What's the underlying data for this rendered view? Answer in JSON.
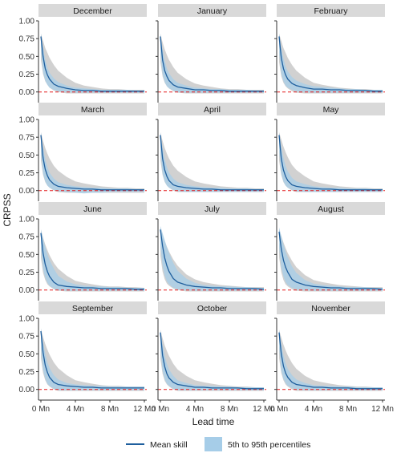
{
  "chart_data": {
    "type": "line",
    "xlabel": "Lead time",
    "ylabel": "CRPSS",
    "xlim": [
      0,
      12
    ],
    "ylim": [
      -0.15,
      1.0
    ],
    "x_ticks": [
      0,
      4,
      8,
      12
    ],
    "x_tick_labels": [
      "0 Mn",
      "4 Mn",
      "8 Mn",
      "12 Mn"
    ],
    "y_ticks": [
      0.0,
      0.25,
      0.5,
      0.75,
      1.0
    ],
    "y_tick_labels": [
      "0.00",
      "0.25",
      "0.50",
      "0.75",
      "1.00"
    ],
    "zero_reference": 0,
    "x": [
      0,
      0.25,
      0.5,
      0.75,
      1,
      1.5,
      2,
      3,
      4,
      5,
      6,
      7,
      8,
      9,
      10,
      11,
      12
    ],
    "colors": {
      "mean_line": "#1f5f9e",
      "percentile_band": "#a6cde8",
      "climatology_band": "#bdbdbd",
      "zero_line": "#e41a1c"
    },
    "legend": {
      "position": "bottom",
      "items": [
        {
          "label": "Mean skill",
          "type": "line",
          "color": "#1f5f9e"
        },
        {
          "label": "5th to 95th percentiles",
          "type": "area",
          "color": "#a6cde8"
        }
      ]
    },
    "panels": [
      {
        "title": "December",
        "mean": [
          0.78,
          0.5,
          0.33,
          0.24,
          0.18,
          0.11,
          0.08,
          0.05,
          0.03,
          0.02,
          0.02,
          0.01,
          0.01,
          0.01,
          0.01,
          0.01,
          0.01
        ],
        "p5": [
          0.6,
          0.28,
          0.16,
          0.1,
          0.06,
          0.03,
          0.01,
          0.0,
          -0.01,
          -0.01,
          -0.01,
          -0.01,
          -0.01,
          -0.01,
          -0.01,
          -0.01,
          -0.01
        ],
        "p95": [
          0.82,
          0.62,
          0.45,
          0.34,
          0.27,
          0.19,
          0.14,
          0.09,
          0.06,
          0.05,
          0.04,
          0.03,
          0.03,
          0.03,
          0.03,
          0.02,
          0.02
        ],
        "grey_low": [
          0.45,
          0.25,
          0.15,
          0.1,
          0.06,
          0.02,
          0.0,
          -0.02,
          -0.02,
          -0.02,
          -0.02,
          -0.02,
          -0.02,
          -0.02,
          -0.02,
          -0.02,
          -0.02
        ],
        "grey_high": [
          0.82,
          0.72,
          0.62,
          0.55,
          0.48,
          0.38,
          0.3,
          0.2,
          0.13,
          0.09,
          0.07,
          0.05,
          0.04,
          0.04,
          0.03,
          0.03,
          0.03
        ]
      },
      {
        "title": "January",
        "mean": [
          0.78,
          0.45,
          0.3,
          0.22,
          0.16,
          0.1,
          0.07,
          0.05,
          0.03,
          0.03,
          0.02,
          0.02,
          0.01,
          0.01,
          0.01,
          0.01,
          0.01
        ],
        "p5": [
          0.55,
          0.25,
          0.14,
          0.08,
          0.05,
          0.02,
          0.0,
          -0.01,
          -0.01,
          -0.01,
          -0.01,
          -0.01,
          -0.01,
          -0.01,
          -0.01,
          -0.01,
          -0.01
        ],
        "p95": [
          0.82,
          0.6,
          0.44,
          0.33,
          0.26,
          0.18,
          0.13,
          0.09,
          0.06,
          0.05,
          0.04,
          0.04,
          0.03,
          0.03,
          0.03,
          0.02,
          0.02
        ],
        "grey_low": [
          0.42,
          0.22,
          0.13,
          0.08,
          0.05,
          0.01,
          -0.01,
          -0.02,
          -0.02,
          -0.02,
          -0.02,
          -0.02,
          -0.02,
          -0.02,
          -0.02,
          -0.02,
          -0.02
        ],
        "grey_high": [
          0.82,
          0.7,
          0.6,
          0.52,
          0.45,
          0.35,
          0.27,
          0.18,
          0.12,
          0.09,
          0.07,
          0.05,
          0.04,
          0.04,
          0.03,
          0.03,
          0.03
        ]
      },
      {
        "title": "February",
        "mean": [
          0.78,
          0.48,
          0.33,
          0.24,
          0.18,
          0.12,
          0.09,
          0.06,
          0.04,
          0.04,
          0.03,
          0.03,
          0.02,
          0.02,
          0.02,
          0.01,
          0.01
        ],
        "p5": [
          0.55,
          0.26,
          0.15,
          0.09,
          0.06,
          0.03,
          0.01,
          0.0,
          -0.01,
          -0.01,
          -0.01,
          -0.01,
          -0.01,
          -0.01,
          -0.01,
          -0.01,
          -0.01
        ],
        "p95": [
          0.82,
          0.62,
          0.47,
          0.36,
          0.29,
          0.21,
          0.16,
          0.11,
          0.08,
          0.07,
          0.06,
          0.05,
          0.04,
          0.04,
          0.03,
          0.03,
          0.03
        ],
        "grey_low": [
          0.42,
          0.22,
          0.13,
          0.08,
          0.05,
          0.01,
          -0.01,
          -0.02,
          -0.02,
          -0.02,
          -0.02,
          -0.02,
          -0.02,
          -0.02,
          -0.02,
          -0.02,
          -0.02
        ],
        "grey_high": [
          0.82,
          0.72,
          0.62,
          0.55,
          0.48,
          0.38,
          0.3,
          0.2,
          0.13,
          0.1,
          0.08,
          0.06,
          0.05,
          0.04,
          0.04,
          0.03,
          0.03
        ]
      },
      {
        "title": "March",
        "mean": [
          0.78,
          0.46,
          0.3,
          0.21,
          0.15,
          0.09,
          0.06,
          0.04,
          0.03,
          0.02,
          0.02,
          0.01,
          0.01,
          0.01,
          0.01,
          0.01,
          0.01
        ],
        "p5": [
          0.55,
          0.24,
          0.13,
          0.07,
          0.04,
          0.01,
          -0.01,
          -0.02,
          -0.03,
          -0.04,
          -0.03,
          -0.03,
          -0.02,
          -0.02,
          -0.02,
          -0.02,
          -0.02
        ],
        "p95": [
          0.82,
          0.6,
          0.44,
          0.33,
          0.25,
          0.17,
          0.12,
          0.08,
          0.06,
          0.05,
          0.04,
          0.04,
          0.03,
          0.03,
          0.03,
          0.02,
          0.02
        ],
        "grey_low": [
          0.42,
          0.22,
          0.12,
          0.07,
          0.04,
          0.0,
          -0.02,
          -0.03,
          -0.03,
          -0.03,
          -0.03,
          -0.03,
          -0.03,
          -0.03,
          -0.03,
          -0.03,
          -0.03
        ],
        "grey_high": [
          0.82,
          0.7,
          0.6,
          0.52,
          0.45,
          0.35,
          0.28,
          0.19,
          0.13,
          0.1,
          0.08,
          0.06,
          0.05,
          0.04,
          0.04,
          0.03,
          0.03
        ]
      },
      {
        "title": "April",
        "mean": [
          0.78,
          0.45,
          0.29,
          0.2,
          0.14,
          0.08,
          0.06,
          0.04,
          0.03,
          0.02,
          0.02,
          0.01,
          0.01,
          0.01,
          0.01,
          0.01,
          0.01
        ],
        "p5": [
          0.55,
          0.24,
          0.13,
          0.07,
          0.04,
          0.01,
          -0.01,
          -0.02,
          -0.02,
          -0.02,
          -0.02,
          -0.02,
          -0.02,
          -0.02,
          -0.02,
          -0.02,
          -0.02
        ],
        "p95": [
          0.82,
          0.6,
          0.44,
          0.33,
          0.25,
          0.17,
          0.12,
          0.08,
          0.06,
          0.05,
          0.04,
          0.04,
          0.03,
          0.03,
          0.03,
          0.02,
          0.02
        ],
        "grey_low": [
          0.42,
          0.22,
          0.12,
          0.07,
          0.04,
          0.0,
          -0.02,
          -0.02,
          -0.02,
          -0.02,
          -0.02,
          -0.02,
          -0.02,
          -0.02,
          -0.02,
          -0.02,
          -0.02
        ],
        "grey_high": [
          0.82,
          0.7,
          0.6,
          0.52,
          0.45,
          0.35,
          0.28,
          0.19,
          0.13,
          0.1,
          0.08,
          0.06,
          0.05,
          0.04,
          0.04,
          0.03,
          0.03
        ]
      },
      {
        "title": "May",
        "mean": [
          0.78,
          0.45,
          0.29,
          0.2,
          0.14,
          0.08,
          0.06,
          0.04,
          0.03,
          0.02,
          0.02,
          0.01,
          0.01,
          0.01,
          0.01,
          0.01,
          0.01
        ],
        "p5": [
          0.55,
          0.24,
          0.13,
          0.07,
          0.04,
          0.01,
          -0.01,
          -0.02,
          -0.02,
          -0.02,
          -0.02,
          -0.02,
          -0.02,
          -0.02,
          -0.02,
          -0.02,
          -0.02
        ],
        "p95": [
          0.82,
          0.62,
          0.46,
          0.35,
          0.27,
          0.18,
          0.13,
          0.09,
          0.06,
          0.05,
          0.04,
          0.04,
          0.03,
          0.03,
          0.03,
          0.02,
          0.02
        ],
        "grey_low": [
          0.42,
          0.22,
          0.12,
          0.07,
          0.04,
          0.0,
          -0.02,
          -0.02,
          -0.02,
          -0.02,
          -0.02,
          -0.02,
          -0.02,
          -0.02,
          -0.02,
          -0.02,
          -0.02
        ],
        "grey_high": [
          0.82,
          0.72,
          0.62,
          0.54,
          0.47,
          0.36,
          0.29,
          0.2,
          0.13,
          0.1,
          0.08,
          0.06,
          0.05,
          0.04,
          0.04,
          0.03,
          0.03
        ]
      },
      {
        "title": "June",
        "mean": [
          0.8,
          0.52,
          0.36,
          0.26,
          0.19,
          0.11,
          0.07,
          0.05,
          0.04,
          0.03,
          0.03,
          0.02,
          0.02,
          0.02,
          0.02,
          0.01,
          0.01
        ],
        "p5": [
          0.6,
          0.3,
          0.17,
          0.1,
          0.06,
          0.02,
          0.0,
          -0.01,
          -0.01,
          -0.01,
          -0.01,
          -0.01,
          -0.01,
          -0.01,
          -0.01,
          -0.01,
          -0.01
        ],
        "p95": [
          0.85,
          0.72,
          0.6,
          0.5,
          0.42,
          0.3,
          0.2,
          0.12,
          0.08,
          0.06,
          0.05,
          0.05,
          0.04,
          0.04,
          0.03,
          0.03,
          0.03
        ],
        "grey_low": [
          0.45,
          0.24,
          0.14,
          0.08,
          0.05,
          0.01,
          -0.01,
          -0.02,
          -0.02,
          -0.02,
          -0.02,
          -0.02,
          -0.02,
          -0.02,
          -0.02,
          -0.02,
          -0.02
        ],
        "grey_high": [
          0.85,
          0.74,
          0.64,
          0.56,
          0.49,
          0.38,
          0.3,
          0.2,
          0.13,
          0.1,
          0.08,
          0.06,
          0.05,
          0.05,
          0.04,
          0.04,
          0.03
        ]
      },
      {
        "title": "July",
        "mean": [
          0.85,
          0.62,
          0.45,
          0.34,
          0.26,
          0.16,
          0.11,
          0.07,
          0.05,
          0.04,
          0.03,
          0.03,
          0.02,
          0.02,
          0.02,
          0.02,
          0.01
        ],
        "p5": [
          0.62,
          0.34,
          0.2,
          0.12,
          0.08,
          0.03,
          0.01,
          0.0,
          -0.01,
          -0.01,
          -0.01,
          -0.01,
          -0.01,
          -0.01,
          -0.01,
          -0.01,
          -0.01
        ],
        "p95": [
          0.9,
          0.8,
          0.7,
          0.6,
          0.52,
          0.38,
          0.27,
          0.16,
          0.1,
          0.07,
          0.06,
          0.05,
          0.05,
          0.04,
          0.04,
          0.03,
          0.03
        ],
        "grey_low": [
          0.48,
          0.26,
          0.15,
          0.09,
          0.06,
          0.02,
          0.0,
          -0.02,
          -0.02,
          -0.02,
          -0.02,
          -0.02,
          -0.02,
          -0.02,
          -0.02,
          -0.02,
          -0.02
        ],
        "grey_high": [
          0.88,
          0.78,
          0.69,
          0.61,
          0.54,
          0.43,
          0.34,
          0.22,
          0.15,
          0.11,
          0.09,
          0.07,
          0.06,
          0.05,
          0.04,
          0.04,
          0.04
        ]
      },
      {
        "title": "August",
        "mean": [
          0.82,
          0.58,
          0.42,
          0.32,
          0.25,
          0.15,
          0.11,
          0.07,
          0.05,
          0.04,
          0.03,
          0.03,
          0.02,
          0.02,
          0.02,
          0.02,
          0.01
        ],
        "p5": [
          0.6,
          0.32,
          0.19,
          0.11,
          0.07,
          0.03,
          0.01,
          0.0,
          -0.01,
          -0.01,
          -0.01,
          -0.01,
          -0.01,
          -0.01,
          -0.01,
          -0.01,
          -0.01
        ],
        "p95": [
          0.88,
          0.76,
          0.64,
          0.54,
          0.46,
          0.33,
          0.24,
          0.14,
          0.09,
          0.07,
          0.06,
          0.05,
          0.04,
          0.04,
          0.04,
          0.03,
          0.03
        ],
        "grey_low": [
          0.46,
          0.25,
          0.14,
          0.08,
          0.05,
          0.01,
          -0.01,
          -0.02,
          -0.02,
          -0.02,
          -0.02,
          -0.02,
          -0.02,
          -0.02,
          -0.02,
          -0.02,
          -0.02
        ],
        "grey_high": [
          0.86,
          0.76,
          0.67,
          0.59,
          0.52,
          0.41,
          0.32,
          0.21,
          0.14,
          0.11,
          0.09,
          0.07,
          0.06,
          0.05,
          0.04,
          0.04,
          0.04
        ]
      },
      {
        "title": "September",
        "mean": [
          0.82,
          0.52,
          0.34,
          0.24,
          0.17,
          0.1,
          0.07,
          0.05,
          0.04,
          0.03,
          0.03,
          0.02,
          0.02,
          0.02,
          0.02,
          0.02,
          0.02
        ],
        "p5": [
          0.58,
          0.28,
          0.15,
          0.08,
          0.05,
          0.01,
          -0.01,
          -0.01,
          -0.01,
          -0.01,
          -0.01,
          -0.01,
          -0.01,
          -0.01,
          -0.01,
          -0.01,
          -0.01
        ],
        "p95": [
          0.86,
          0.66,
          0.5,
          0.38,
          0.3,
          0.2,
          0.14,
          0.09,
          0.07,
          0.06,
          0.05,
          0.05,
          0.04,
          0.04,
          0.04,
          0.04,
          0.04
        ],
        "grey_low": [
          0.44,
          0.23,
          0.13,
          0.07,
          0.04,
          0.0,
          -0.02,
          -0.02,
          -0.02,
          -0.02,
          -0.02,
          -0.02,
          -0.02,
          -0.02,
          -0.02,
          -0.02,
          -0.02
        ],
        "grey_high": [
          0.85,
          0.74,
          0.64,
          0.56,
          0.49,
          0.38,
          0.3,
          0.2,
          0.13,
          0.1,
          0.08,
          0.06,
          0.05,
          0.05,
          0.04,
          0.04,
          0.04
        ]
      },
      {
        "title": "October",
        "mean": [
          0.8,
          0.48,
          0.32,
          0.22,
          0.16,
          0.1,
          0.07,
          0.05,
          0.03,
          0.03,
          0.02,
          0.02,
          0.02,
          0.02,
          0.01,
          0.01,
          0.01
        ],
        "p5": [
          0.56,
          0.26,
          0.14,
          0.08,
          0.05,
          0.01,
          -0.01,
          -0.01,
          -0.01,
          -0.01,
          -0.01,
          -0.01,
          -0.01,
          -0.01,
          -0.01,
          -0.01,
          -0.01
        ],
        "p95": [
          0.84,
          0.63,
          0.47,
          0.36,
          0.28,
          0.19,
          0.13,
          0.09,
          0.06,
          0.05,
          0.05,
          0.04,
          0.04,
          0.03,
          0.03,
          0.03,
          0.03
        ],
        "grey_low": [
          0.43,
          0.22,
          0.12,
          0.07,
          0.04,
          0.0,
          -0.02,
          -0.02,
          -0.02,
          -0.02,
          -0.02,
          -0.02,
          -0.02,
          -0.02,
          -0.02,
          -0.02,
          -0.02
        ],
        "grey_high": [
          0.84,
          0.72,
          0.62,
          0.54,
          0.47,
          0.36,
          0.28,
          0.19,
          0.13,
          0.1,
          0.08,
          0.06,
          0.05,
          0.04,
          0.04,
          0.03,
          0.03
        ]
      },
      {
        "title": "November",
        "mean": [
          0.8,
          0.5,
          0.33,
          0.23,
          0.17,
          0.1,
          0.07,
          0.05,
          0.03,
          0.03,
          0.02,
          0.02,
          0.02,
          0.01,
          0.01,
          0.01,
          0.01
        ],
        "p5": [
          0.58,
          0.27,
          0.15,
          0.09,
          0.05,
          0.02,
          0.0,
          -0.01,
          -0.01,
          -0.01,
          -0.01,
          -0.01,
          -0.01,
          -0.01,
          -0.01,
          -0.01,
          -0.01
        ],
        "p95": [
          0.84,
          0.64,
          0.48,
          0.37,
          0.29,
          0.2,
          0.14,
          0.09,
          0.06,
          0.05,
          0.05,
          0.04,
          0.04,
          0.03,
          0.03,
          0.03,
          0.03
        ],
        "grey_low": [
          0.44,
          0.23,
          0.13,
          0.07,
          0.04,
          0.0,
          -0.02,
          -0.02,
          -0.02,
          -0.02,
          -0.02,
          -0.02,
          -0.02,
          -0.02,
          -0.02,
          -0.02,
          -0.02
        ],
        "grey_high": [
          0.84,
          0.73,
          0.63,
          0.55,
          0.48,
          0.37,
          0.29,
          0.19,
          0.13,
          0.1,
          0.08,
          0.06,
          0.05,
          0.04,
          0.04,
          0.03,
          0.03
        ]
      }
    ]
  }
}
